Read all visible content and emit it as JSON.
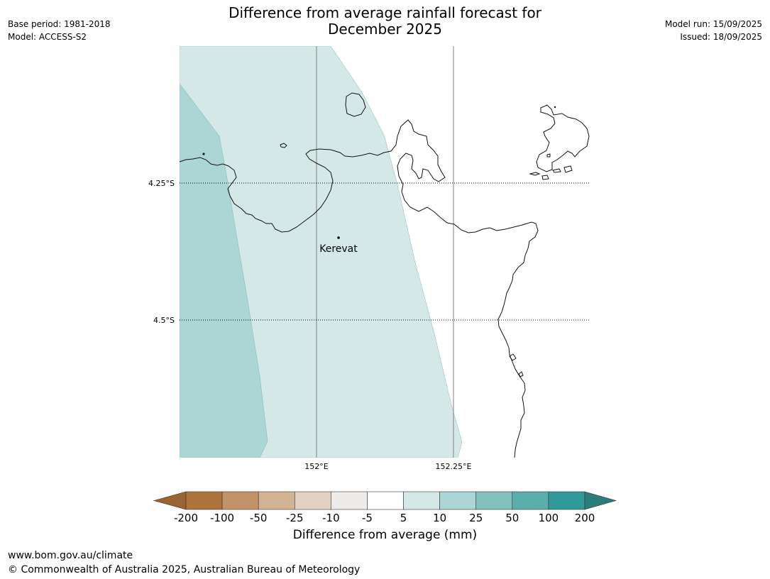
{
  "title": {
    "line1": "Difference from average rainfall forecast for",
    "line2": "December 2025"
  },
  "meta_left": {
    "base_period": "Base period: 1981-2018",
    "model": "Model: ACCESS-S2"
  },
  "meta_right": {
    "model_run": "Model run: 15/09/2025",
    "issued": "Issued: 18/09/2025"
  },
  "map": {
    "place_label": "Kerevat",
    "lat_labels": [
      "4.25°S",
      "4.5°S"
    ],
    "lon_labels": [
      "152°E",
      "152.25°E"
    ]
  },
  "colorbar": {
    "title": "Difference from average (mm)",
    "ticks": [
      "-200",
      "-100",
      "-50",
      "-25",
      "-10",
      "-5",
      "5",
      "10",
      "25",
      "50",
      "100",
      "200"
    ],
    "colors": [
      "#9b6531",
      "#ae743b",
      "#c2936a",
      "#d4b294",
      "#e3d1c1",
      "#efebe8",
      "#ffffff",
      "#d4e8e7",
      "#acd6d5",
      "#82c1be",
      "#5aaeac",
      "#31999a",
      "#2b7c7b"
    ]
  },
  "footer": {
    "url": "www.bom.gov.au/climate",
    "copyright": "© Commonwealth of Australia 2025, Australian Bureau of Meteorology"
  }
}
